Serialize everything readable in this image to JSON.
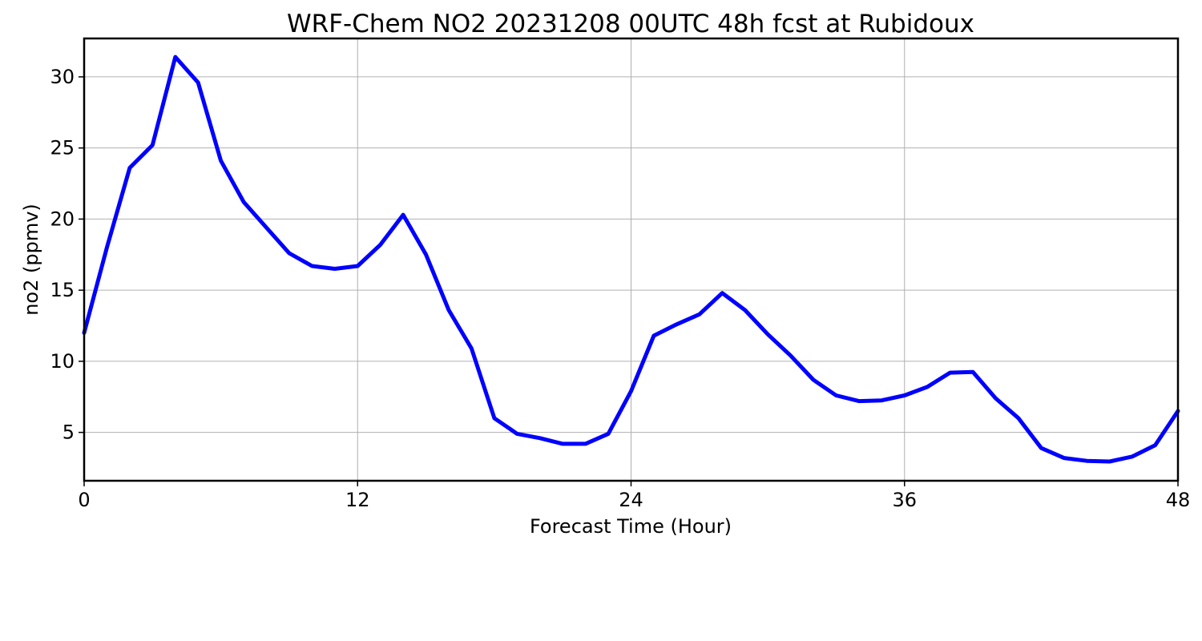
{
  "chart_data": {
    "type": "line",
    "title": "WRF-Chem NO2  20231208 00UTC 48h fcst at Rubidoux",
    "xlabel": "Forecast Time (Hour)",
    "ylabel": "no2  (ppmv)",
    "xlim": [
      0,
      48
    ],
    "ylim": [
      1.6,
      32.7
    ],
    "xticks": [
      0,
      12,
      24,
      36,
      48
    ],
    "yticks": [
      5,
      10,
      15,
      20,
      25,
      30
    ],
    "grid": true,
    "series": [
      {
        "color": "#0000ff",
        "x": [
          0,
          1,
          2,
          3,
          4,
          5,
          6,
          7,
          8,
          9,
          10,
          11,
          12,
          13,
          14,
          15,
          16,
          17,
          18,
          19,
          20,
          21,
          22,
          23,
          24,
          25,
          26,
          27,
          28,
          29,
          30,
          31,
          32,
          33,
          34,
          35,
          36,
          37,
          38,
          39,
          40,
          41,
          42,
          43,
          44,
          45,
          46,
          47,
          48
        ],
        "y": [
          12.0,
          18.0,
          23.6,
          25.2,
          31.4,
          29.6,
          24.1,
          21.2,
          19.4,
          17.6,
          16.7,
          16.5,
          16.7,
          18.2,
          20.3,
          17.5,
          13.6,
          10.9,
          6.0,
          4.9,
          4.6,
          4.2,
          4.2,
          4.9,
          7.9,
          11.8,
          12.6,
          13.3,
          14.8,
          13.6,
          11.9,
          10.4,
          8.7,
          7.6,
          7.2,
          7.25,
          7.6,
          8.2,
          9.2,
          9.25,
          7.4,
          6.0,
          3.9,
          3.2,
          3.0,
          2.95,
          3.3,
          4.1,
          6.5
        ]
      }
    ]
  }
}
